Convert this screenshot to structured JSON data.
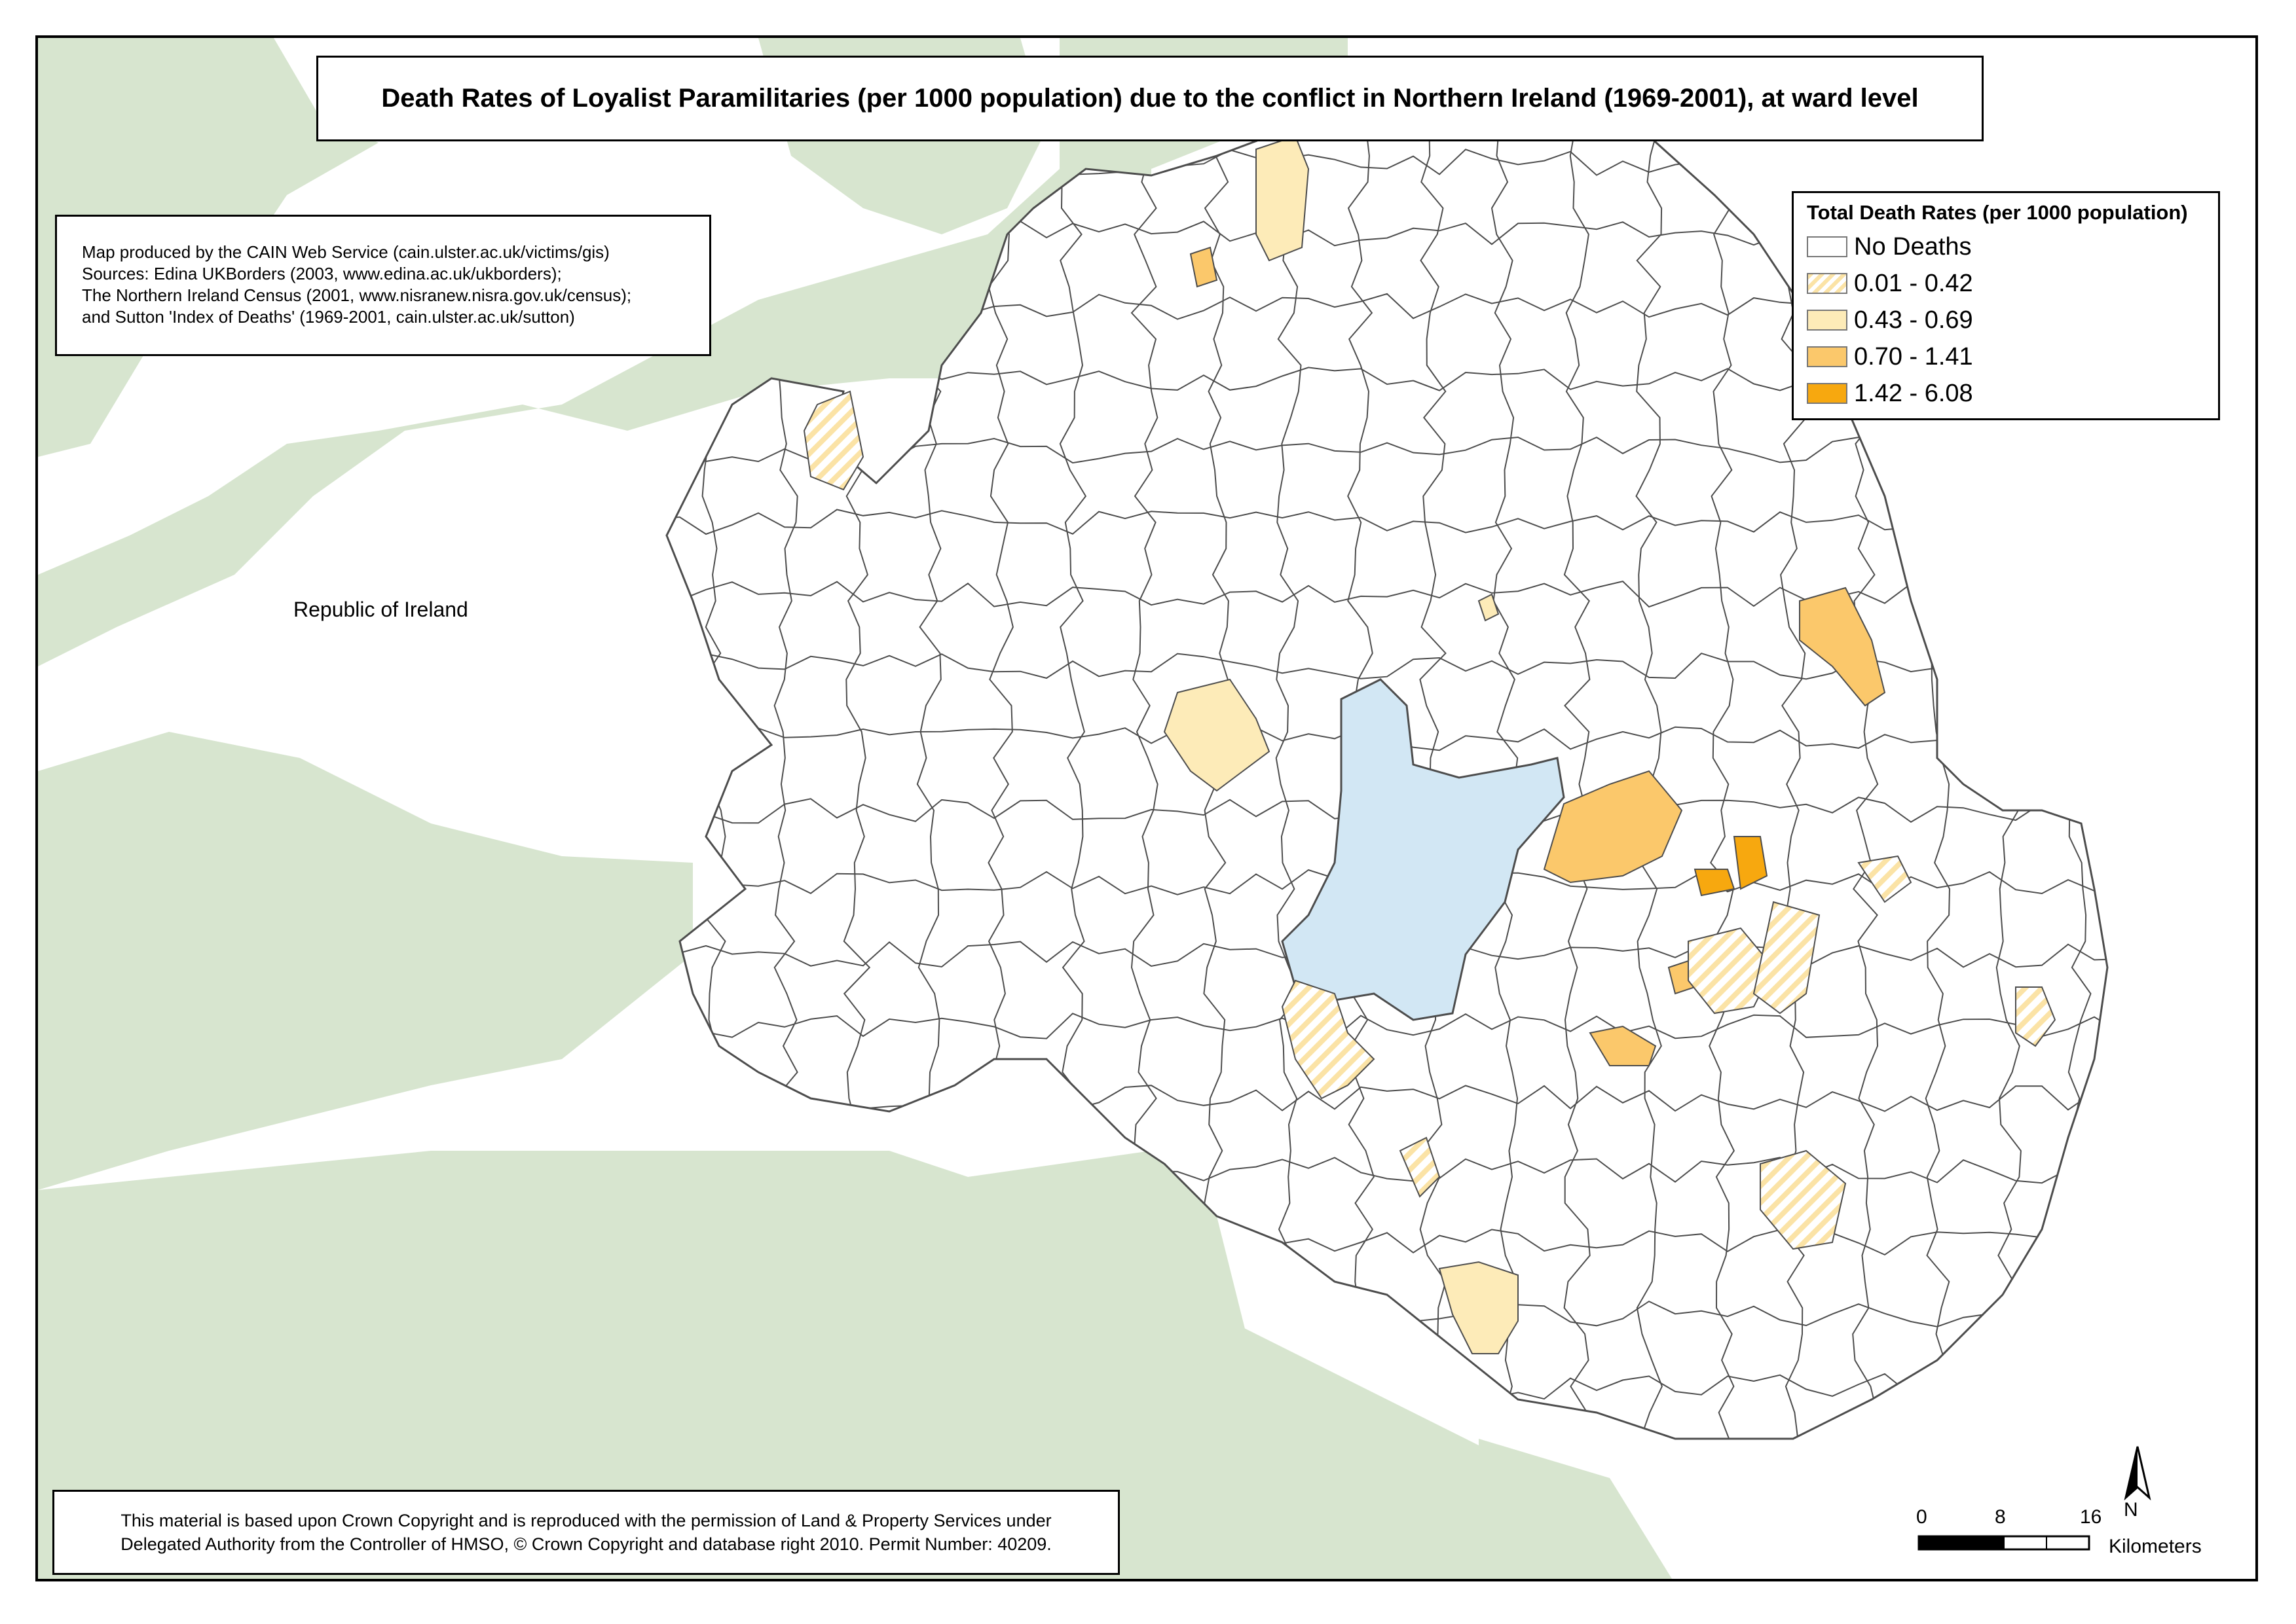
{
  "title": "Death Rates of Loyalist Paramilitaries (per 1000 population) due to the conflict in Northern Ireland (1969-2001), at ward level",
  "credits": [
    "Map produced by the CAIN Web Service (cain.ulster.ac.uk/victims/gis)",
    "Sources: Edina UKBorders (2003, www.edina.ac.uk/ukborders);",
    "The Northern Ireland Census (2001, www.nisranew.nisra.gov.uk/census);",
    "and Sutton 'Index of Deaths' (1969-2001, cain.ulster.ac.uk/sutton)"
  ],
  "copyright": [
    "This material is based upon Crown Copyright and is reproduced with the permission of Land & Property Services under",
    "Delegated Authority from the Controller of HMSO, © Crown Copyright and database right 2010. Permit Number: 40209."
  ],
  "legend": {
    "title": "Total Death Rates (per 1000 population)",
    "items": [
      {
        "label": "No Deaths",
        "fill": "#ffffff",
        "pattern": "solid"
      },
      {
        "label": "0.01 - 0.42",
        "fill": "#fbe3a6",
        "pattern": "hatch"
      },
      {
        "label": "0.43 - 0.69",
        "fill": "#fdebb8",
        "pattern": "solid"
      },
      {
        "label": "0.70 - 1.41",
        "fill": "#fbc86b",
        "pattern": "solid"
      },
      {
        "label": "1.42 - 6.08",
        "fill": "#f7a80f",
        "pattern": "solid"
      }
    ]
  },
  "labels": {
    "roi": "Republic of Ireland"
  },
  "north_arrow": {
    "label": "N",
    "icon": "north-arrow-icon"
  },
  "scale": {
    "ticks": [
      "0",
      "8",
      "16"
    ],
    "unit": "Kilometers"
  },
  "colors": {
    "land_roi": "#d7e5cf",
    "water_lough_neagh": "#d2e7f4",
    "ward_border": "#4d4d4d"
  }
}
